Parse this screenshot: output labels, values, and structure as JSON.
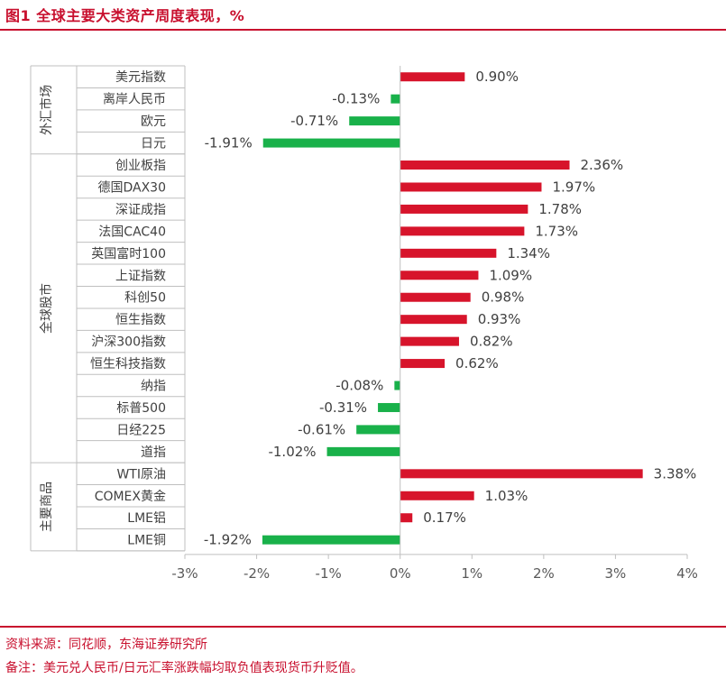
{
  "title": "图1 全球主要大类资产周度表现，%",
  "source": "资料来源：同花顺，东海证券研究所",
  "note": "备注：美元兑人民币/日元汇率涨跌幅均取负值表现货币升贬值。",
  "colors": {
    "positive": "#d7142b",
    "negative": "#19b14a",
    "accent": "#c8102e"
  },
  "chart_data": {
    "type": "bar",
    "orientation": "horizontal",
    "groups": [
      {
        "name": "外汇市场",
        "items": [
          {
            "label": "美元指数",
            "value": 0.9,
            "value_label": "0.90%"
          },
          {
            "label": "离岸人民币",
            "value": -0.13,
            "value_label": "-0.13%"
          },
          {
            "label": "欧元",
            "value": -0.71,
            "value_label": "-0.71%"
          },
          {
            "label": "日元",
            "value": -1.91,
            "value_label": "-1.91%"
          }
        ]
      },
      {
        "name": "全球股市",
        "items": [
          {
            "label": "创业板指",
            "value": 2.36,
            "value_label": "2.36%"
          },
          {
            "label": "德国DAX30",
            "value": 1.97,
            "value_label": "1.97%"
          },
          {
            "label": "深证成指",
            "value": 1.78,
            "value_label": "1.78%"
          },
          {
            "label": "法国CAC40",
            "value": 1.73,
            "value_label": "1.73%"
          },
          {
            "label": "英国富时100",
            "value": 1.34,
            "value_label": "1.34%"
          },
          {
            "label": "上证指数",
            "value": 1.09,
            "value_label": "1.09%"
          },
          {
            "label": "科创50",
            "value": 0.98,
            "value_label": "0.98%"
          },
          {
            "label": "恒生指数",
            "value": 0.93,
            "value_label": "0.93%"
          },
          {
            "label": "沪深300指数",
            "value": 0.82,
            "value_label": "0.82%"
          },
          {
            "label": "恒生科技指数",
            "value": 0.62,
            "value_label": "0.62%"
          },
          {
            "label": "纳指",
            "value": -0.08,
            "value_label": "-0.08%"
          },
          {
            "label": "标普500",
            "value": -0.31,
            "value_label": "-0.31%"
          },
          {
            "label": "日经225",
            "value": -0.61,
            "value_label": "-0.61%"
          },
          {
            "label": "道指",
            "value": -1.02,
            "value_label": "-1.02%"
          }
        ]
      },
      {
        "name": "主要商品",
        "items": [
          {
            "label": "WTI原油",
            "value": 3.38,
            "value_label": "3.38%"
          },
          {
            "label": "COMEX黄金",
            "value": 1.03,
            "value_label": "1.03%"
          },
          {
            "label": "LME铝",
            "value": 0.17,
            "value_label": "0.17%"
          },
          {
            "label": "LME铜",
            "value": -1.92,
            "value_label": "-1.92%"
          }
        ]
      }
    ],
    "x_ticks": [
      -3,
      -2,
      -1,
      0,
      1,
      2,
      3,
      4
    ],
    "x_tick_labels": [
      "-3%",
      "-2%",
      "-1%",
      "0%",
      "1%",
      "2%",
      "3%",
      "4%"
    ],
    "xlim": [
      -3,
      4
    ],
    "grid": false
  }
}
